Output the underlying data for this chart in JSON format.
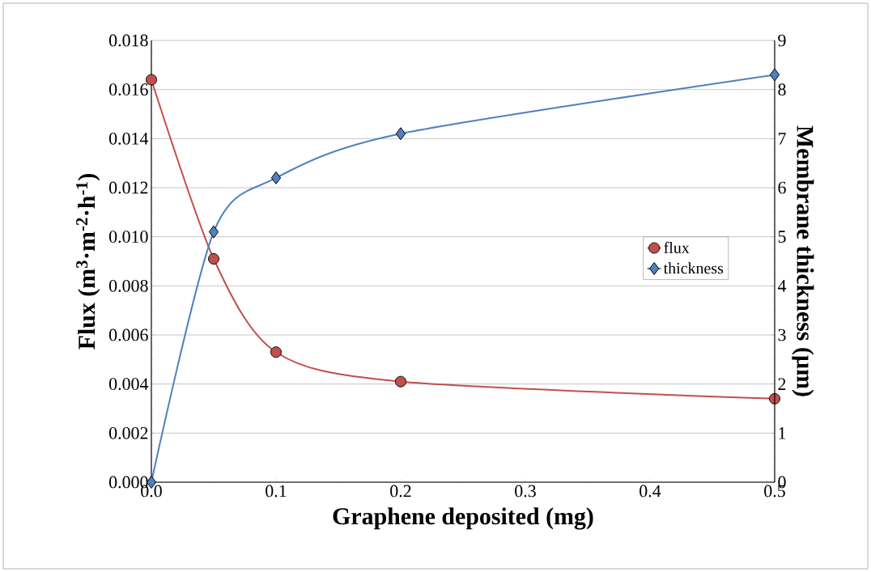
{
  "chart_data": {
    "type": "line",
    "xlabel": "Graphene deposited (mg)",
    "ylabel": "Flux (m$^{3}$·m$^{-2}$·h$^{-1}$)",
    "y2label": "Membrane  thickness (µm)",
    "x": [
      0,
      0.05,
      0.1,
      0.2,
      0.5
    ],
    "series": [
      {
        "name": "flux",
        "color": "#c0504d",
        "marker": "circle",
        "values": [
          0.0164,
          0.0091,
          0.0053,
          0.0041,
          0.0034
        ]
      },
      {
        "name": "thickness",
        "color": "#4f81bd",
        "marker": "diamond",
        "axis": "y2",
        "values": [
          0,
          5.1,
          6.2,
          7.1,
          8.3
        ]
      }
    ],
    "xlim": [
      0,
      0.5
    ],
    "xticks": [
      {
        "value": 0,
        "label": "0.0"
      },
      {
        "value": 0.1,
        "label": "0.1"
      },
      {
        "value": 0.2,
        "label": "0.2"
      },
      {
        "value": 0.3,
        "label": "0.3"
      },
      {
        "value": 0.4,
        "label": "0.4"
      },
      {
        "value": 0.5,
        "label": "0.5"
      }
    ],
    "ylim": [
      0,
      0.018
    ],
    "yticks": [
      {
        "value": 0,
        "label": "0.000"
      },
      {
        "value": 0.002,
        "label": "0.002"
      },
      {
        "value": 0.004,
        "label": "0.004"
      },
      {
        "value": 0.006,
        "label": "0.006"
      },
      {
        "value": 0.008,
        "label": "0.008"
      },
      {
        "value": 0.01,
        "label": "0.010"
      },
      {
        "value": 0.012,
        "label": "0.012"
      },
      {
        "value": 0.014,
        "label": "0.014"
      },
      {
        "value": 0.016,
        "label": "0.016"
      },
      {
        "value": 0.018,
        "label": "0.018"
      }
    ],
    "y2lim": [
      0,
      9
    ],
    "y2ticks": [
      0,
      1,
      2,
      3,
      4,
      5,
      6,
      7,
      8,
      9
    ],
    "grid": "y",
    "legend": "right"
  }
}
